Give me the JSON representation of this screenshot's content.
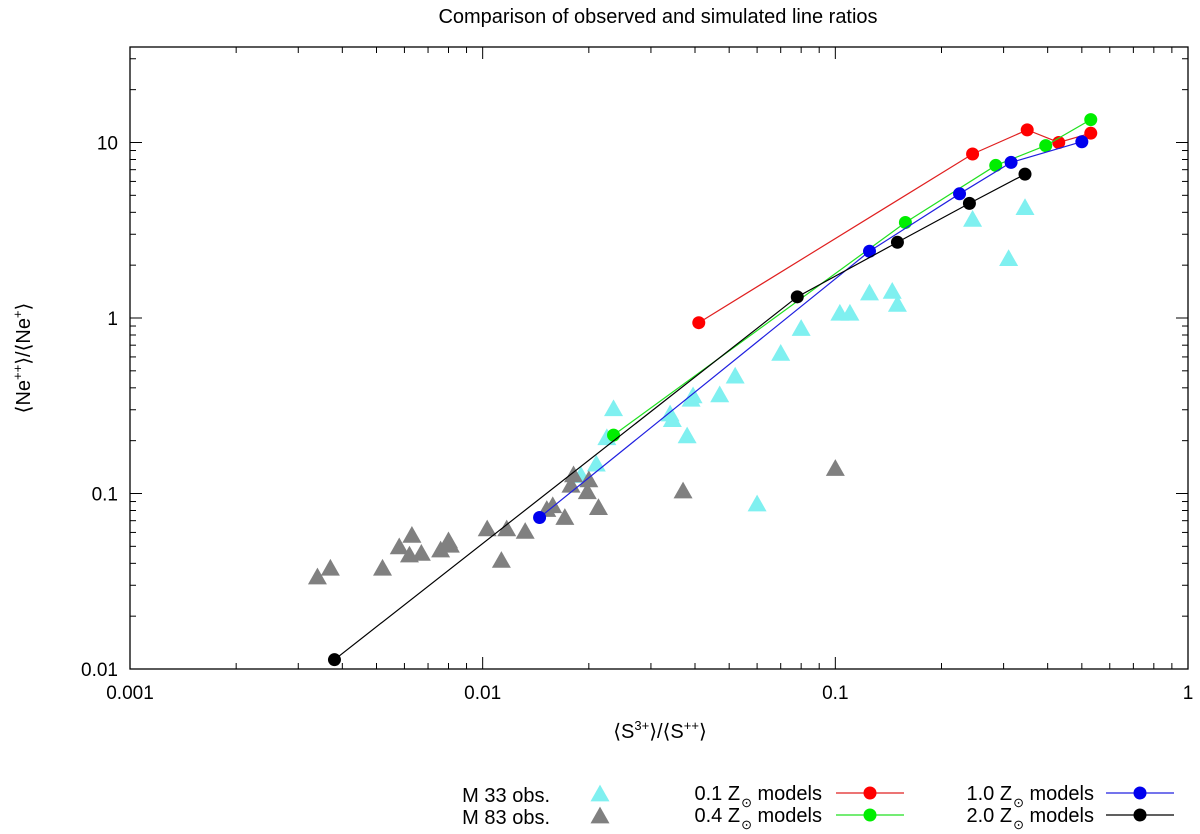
{
  "chart_data": {
    "type": "scatter",
    "title": "Comparison of observed and simulated line ratios",
    "xaxis": {
      "scale": "log",
      "range": [
        0.001,
        1
      ],
      "label_open": "⟨S",
      "label_sup1": "3+",
      "label_mid": "⟩/⟨S",
      "label_sup2": "++",
      "label_close": "⟩",
      "ticks": [
        {
          "value": 0.001,
          "label": "0.001"
        },
        {
          "value": 0.01,
          "label": "0.01"
        },
        {
          "value": 0.1,
          "label": "0.1"
        },
        {
          "value": 1,
          "label": "1"
        }
      ]
    },
    "yaxis": {
      "scale": "log",
      "range": [
        0.01,
        35
      ],
      "label_open": "⟨Ne",
      "label_sup1": "++",
      "label_mid": "⟩/⟨Ne",
      "label_sup2": "+",
      "label_close": "⟩",
      "ticks": [
        {
          "value": 0.01,
          "label": "0.01"
        },
        {
          "value": 0.1,
          "label": "0.1"
        },
        {
          "value": 1,
          "label": "1"
        },
        {
          "value": 10,
          "label": "10"
        }
      ]
    },
    "grid": false,
    "legend_position": "bottom",
    "observations": [
      {
        "name": "M 33 obs.",
        "marker": "triangle",
        "color": "#7ff0f0",
        "points": [
          [
            0.0235,
            0.3
          ],
          [
            0.0225,
            0.205
          ],
          [
            0.021,
            0.145
          ],
          [
            0.019,
            0.125
          ],
          [
            0.0345,
            0.26
          ],
          [
            0.034,
            0.28
          ],
          [
            0.039,
            0.34
          ],
          [
            0.0395,
            0.355
          ],
          [
            0.038,
            0.21
          ],
          [
            0.047,
            0.36
          ],
          [
            0.052,
            0.46
          ],
          [
            0.06,
            0.086
          ],
          [
            0.07,
            0.62
          ],
          [
            0.08,
            0.86
          ],
          [
            0.103,
            1.05
          ],
          [
            0.11,
            1.05
          ],
          [
            0.125,
            1.37
          ],
          [
            0.145,
            1.4
          ],
          [
            0.15,
            1.18
          ],
          [
            0.245,
            3.6
          ],
          [
            0.31,
            2.15
          ],
          [
            0.345,
            4.2
          ]
        ]
      },
      {
        "name": "M 83 obs.",
        "marker": "triangle",
        "color": "#808080",
        "points": [
          [
            0.0034,
            0.033
          ],
          [
            0.0037,
            0.037
          ],
          [
            0.0052,
            0.037
          ],
          [
            0.0058,
            0.049
          ],
          [
            0.0062,
            0.044
          ],
          [
            0.0063,
            0.057
          ],
          [
            0.0067,
            0.045
          ],
          [
            0.0076,
            0.047
          ],
          [
            0.008,
            0.053
          ],
          [
            0.0081,
            0.05
          ],
          [
            0.0103,
            0.062
          ],
          [
            0.0113,
            0.041
          ],
          [
            0.0117,
            0.062
          ],
          [
            0.0132,
            0.06
          ],
          [
            0.0152,
            0.08
          ],
          [
            0.0158,
            0.084
          ],
          [
            0.0171,
            0.072
          ],
          [
            0.0178,
            0.11
          ],
          [
            0.0181,
            0.126
          ],
          [
            0.0198,
            0.101
          ],
          [
            0.02,
            0.118
          ],
          [
            0.0213,
            0.082
          ],
          [
            0.037,
            0.102
          ],
          [
            0.1,
            0.137
          ]
        ]
      }
    ],
    "models": [
      {
        "name_prefix": "0.1 Z",
        "name_suffix": " models",
        "color": "#ff0000",
        "line_color": "#e02020",
        "points": [
          [
            0.041,
            0.94
          ],
          [
            0.245,
            8.6
          ],
          [
            0.35,
            11.8
          ],
          [
            0.43,
            10.0
          ],
          [
            0.53,
            11.3
          ]
        ]
      },
      {
        "name_prefix": "0.4 Z",
        "name_suffix": " models",
        "color": "#00ee00",
        "line_color": "#20e020",
        "points": [
          [
            0.0235,
            0.215
          ],
          [
            0.158,
            3.5
          ],
          [
            0.285,
            7.4
          ],
          [
            0.395,
            9.6
          ],
          [
            0.53,
            13.5
          ]
        ]
      },
      {
        "name_prefix": "1.0 Z",
        "name_suffix": " models",
        "color": "#0000ee",
        "line_color": "#2020e0",
        "points": [
          [
            0.0145,
            0.073
          ],
          [
            0.125,
            2.4
          ],
          [
            0.225,
            5.1
          ],
          [
            0.315,
            7.7
          ],
          [
            0.5,
            10.1
          ]
        ]
      },
      {
        "name_prefix": "2.0 Z",
        "name_suffix": " models",
        "color": "#000000",
        "line_color": "#000000",
        "points": [
          [
            0.0038,
            0.0113
          ],
          [
            0.078,
            1.32
          ],
          [
            0.15,
            2.7
          ],
          [
            0.24,
            4.5
          ],
          [
            0.345,
            6.6
          ]
        ]
      }
    ]
  }
}
